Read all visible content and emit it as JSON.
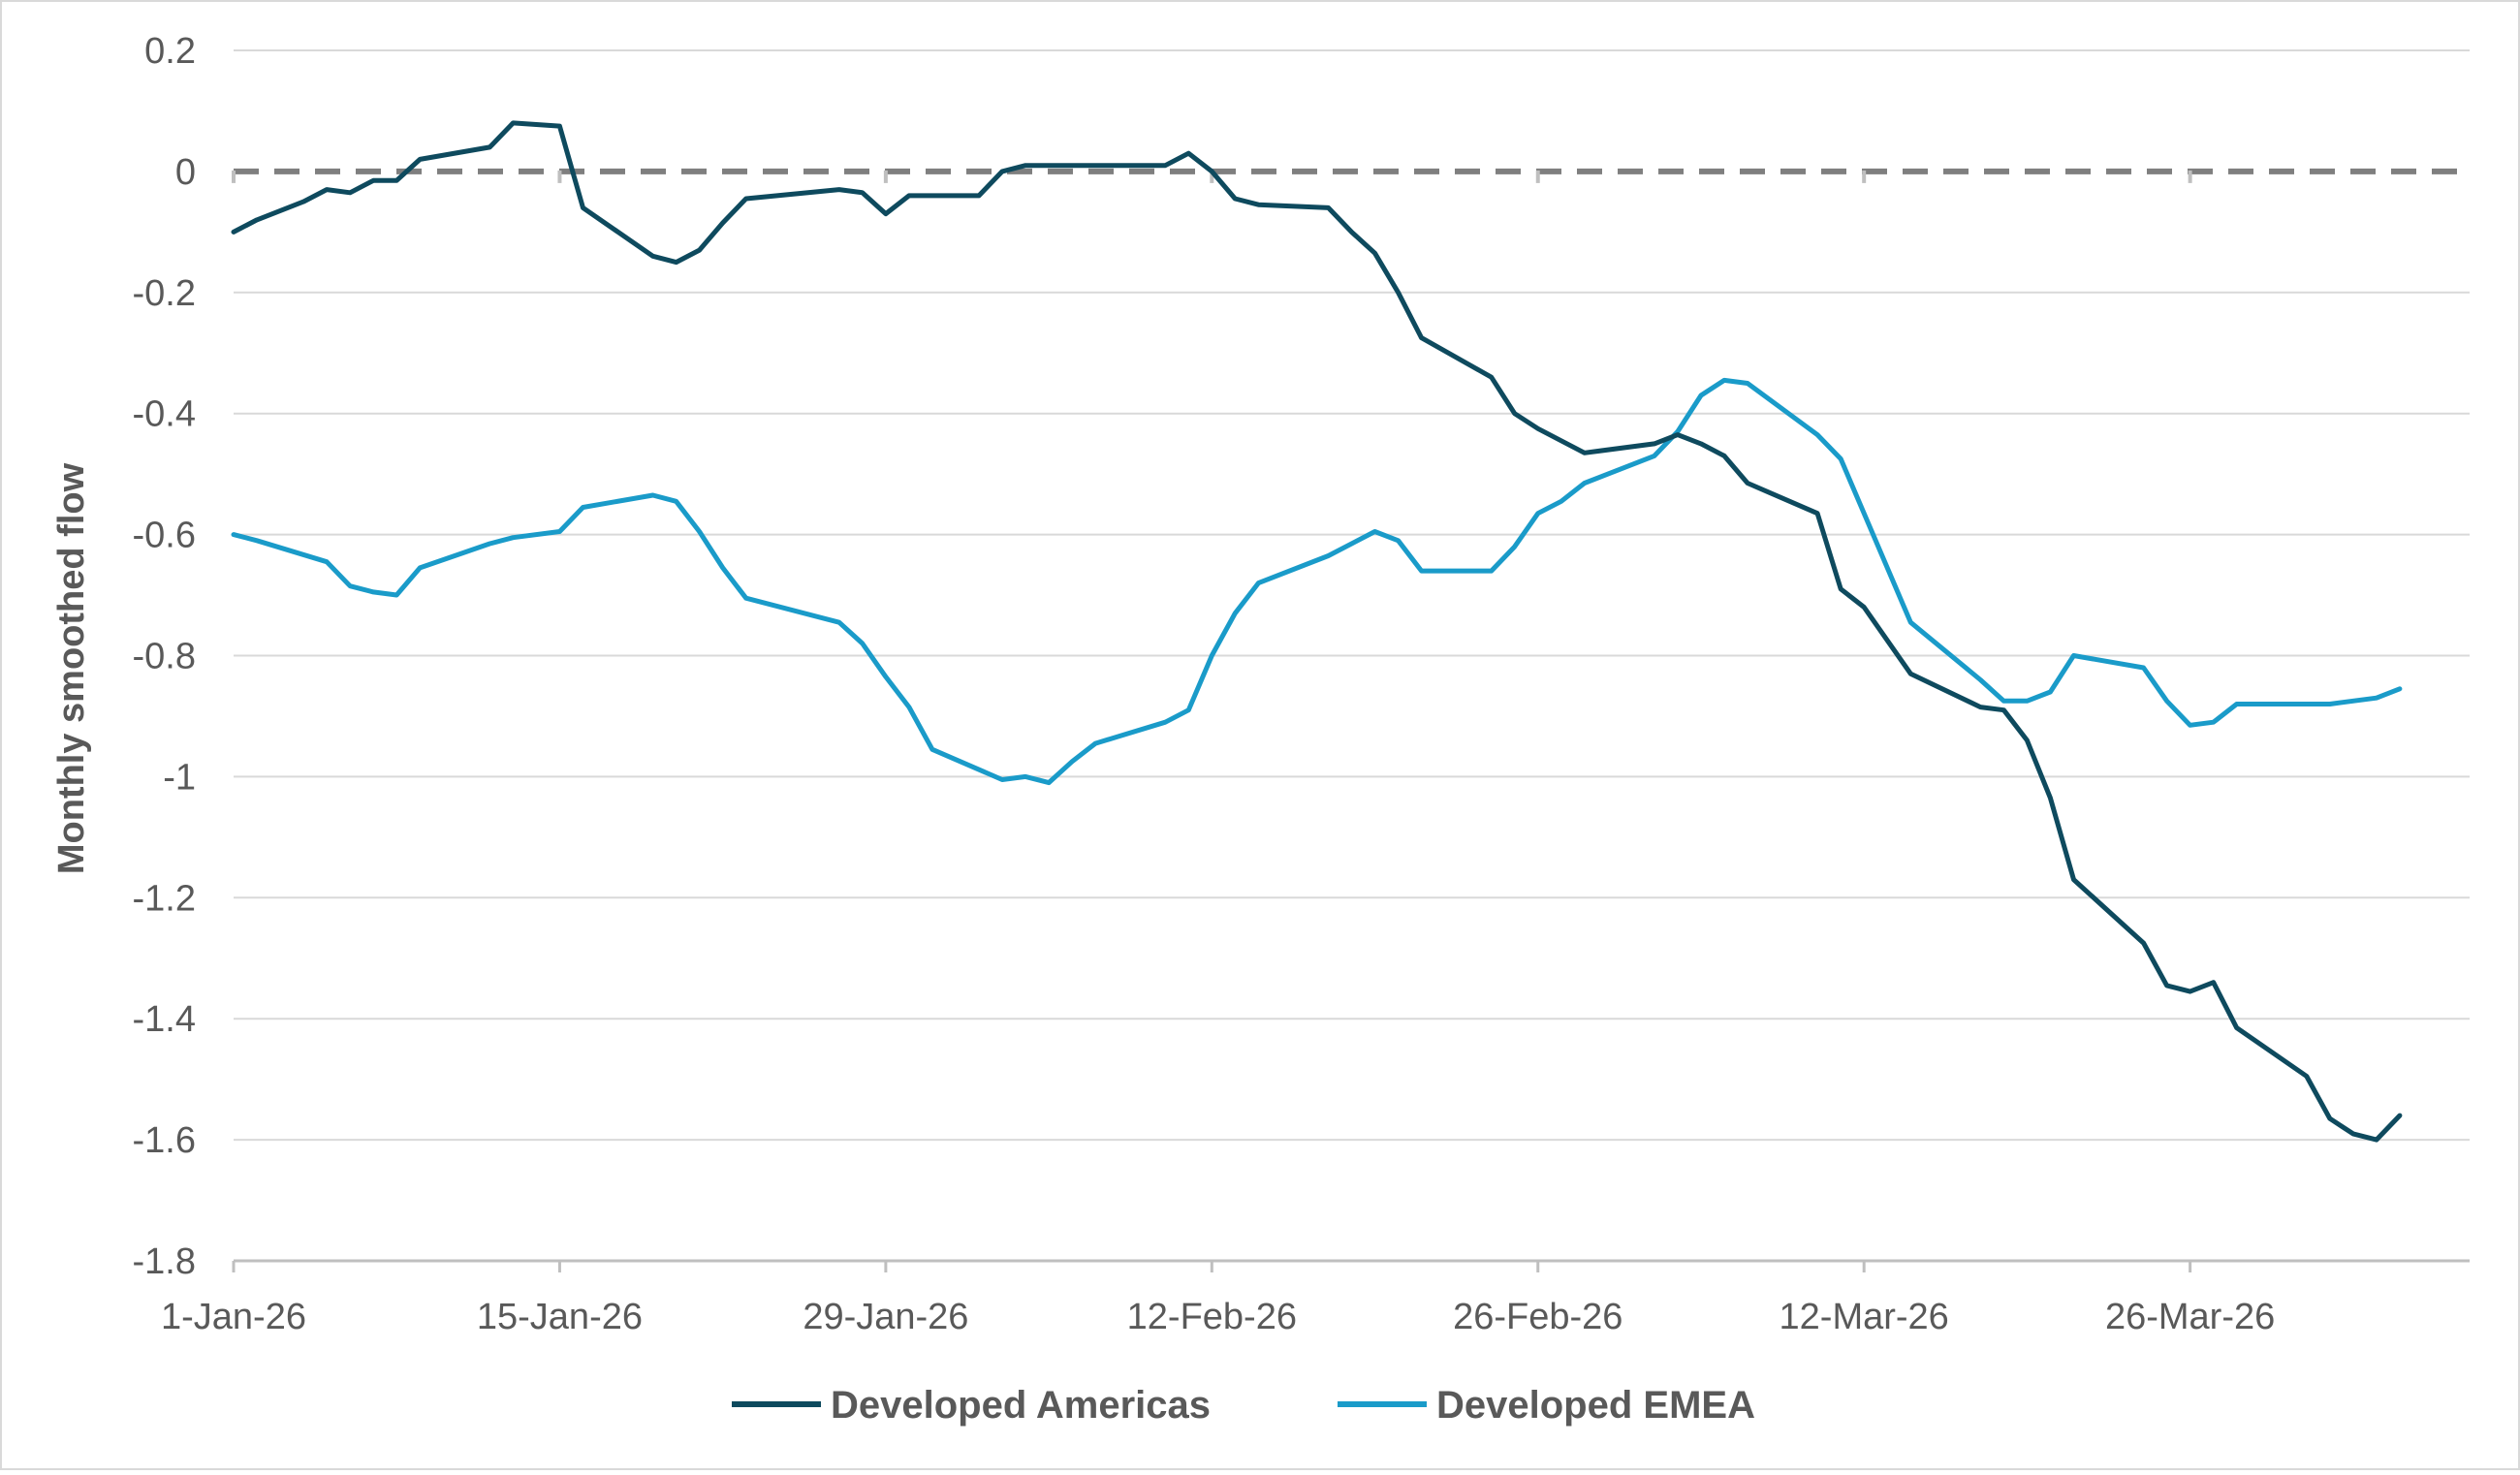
{
  "chart_data": {
    "type": "line",
    "title": "",
    "xlabel": "",
    "ylabel": "Monthly smoothed flow",
    "ylim": [
      -1.8,
      0.2
    ],
    "yticks": [
      0.2,
      0,
      -0.2,
      -0.4,
      -0.6,
      -0.8,
      -1,
      -1.2,
      -1.4,
      -1.6,
      -1.8
    ],
    "ytick_labels": [
      "0.2",
      "0",
      "-0.2",
      "-0.4",
      "-0.6",
      "-0.8",
      "-1",
      "-1.2",
      "-1.4",
      "-1.6",
      "-1.8"
    ],
    "xlim": [
      "2026-01-01",
      "2026-04-07"
    ],
    "xticks": [
      "2026-01-01",
      "2026-01-15",
      "2026-01-29",
      "2026-02-12",
      "2026-02-26",
      "2026-03-12",
      "2026-03-26"
    ],
    "xtick_labels": [
      "1-Jan-26",
      "15-Jan-26",
      "29-Jan-26",
      "12-Feb-26",
      "26-Feb-26",
      "12-Mar-26",
      "26-Mar-26"
    ],
    "grid": true,
    "reference_line": {
      "y": 0,
      "style": "dashed",
      "color": "#7f7f7f"
    },
    "legend_position": "bottom",
    "series": [
      {
        "name": "Developed Americas",
        "color": "#0e4a5e",
        "points": [
          [
            "2026-01-01",
            -0.1
          ],
          [
            "2026-01-02",
            -0.08
          ],
          [
            "2026-01-04",
            -0.05
          ],
          [
            "2026-01-05",
            -0.03
          ],
          [
            "2026-01-06",
            -0.035
          ],
          [
            "2026-01-07",
            -0.015
          ],
          [
            "2026-01-08",
            -0.015
          ],
          [
            "2026-01-09",
            0.02
          ],
          [
            "2026-01-12",
            0.04
          ],
          [
            "2026-01-13",
            0.08
          ],
          [
            "2026-01-15",
            0.075
          ],
          [
            "2026-01-16",
            -0.06
          ],
          [
            "2026-01-19",
            -0.14
          ],
          [
            "2026-01-20",
            -0.15
          ],
          [
            "2026-01-21",
            -0.13
          ],
          [
            "2026-01-22",
            -0.085
          ],
          [
            "2026-01-23",
            -0.045
          ],
          [
            "2026-01-27",
            -0.03
          ],
          [
            "2026-01-28",
            -0.035
          ],
          [
            "2026-01-29",
            -0.07
          ],
          [
            "2026-01-30",
            -0.04
          ],
          [
            "2026-02-02",
            -0.04
          ],
          [
            "2026-02-03",
            0.0
          ],
          [
            "2026-02-04",
            0.01
          ],
          [
            "2026-02-05",
            0.01
          ],
          [
            "2026-02-10",
            0.01
          ],
          [
            "2026-02-11",
            0.03
          ],
          [
            "2026-02-12",
            0.0
          ],
          [
            "2026-02-13",
            -0.045
          ],
          [
            "2026-02-14",
            -0.055
          ],
          [
            "2026-02-17",
            -0.06
          ],
          [
            "2026-02-18",
            -0.1
          ],
          [
            "2026-02-19",
            -0.135
          ],
          [
            "2026-02-20",
            -0.2
          ],
          [
            "2026-02-21",
            -0.275
          ],
          [
            "2026-02-24",
            -0.34
          ],
          [
            "2026-02-25",
            -0.4
          ],
          [
            "2026-02-26",
            -0.425
          ],
          [
            "2026-02-28",
            -0.465
          ],
          [
            "2026-03-03",
            -0.45
          ],
          [
            "2026-03-04",
            -0.435
          ],
          [
            "2026-03-05",
            -0.45
          ],
          [
            "2026-03-06",
            -0.47
          ],
          [
            "2026-03-07",
            -0.515
          ],
          [
            "2026-03-10",
            -0.565
          ],
          [
            "2026-03-11",
            -0.69
          ],
          [
            "2026-03-12",
            -0.72
          ],
          [
            "2026-03-14",
            -0.83
          ],
          [
            "2026-03-17",
            -0.885
          ],
          [
            "2026-03-18",
            -0.89
          ],
          [
            "2026-03-19",
            -0.94
          ],
          [
            "2026-03-20",
            -1.035
          ],
          [
            "2026-03-21",
            -1.17
          ],
          [
            "2026-03-24",
            -1.275
          ],
          [
            "2026-03-25",
            -1.345
          ],
          [
            "2026-03-26",
            -1.355
          ],
          [
            "2026-03-27",
            -1.34
          ],
          [
            "2026-03-28",
            -1.415
          ],
          [
            "2026-03-31",
            -1.495
          ],
          [
            "2026-04-01",
            -1.565
          ],
          [
            "2026-04-02",
            -1.59
          ],
          [
            "2026-04-03",
            -1.6
          ],
          [
            "2026-04-04",
            -1.56
          ]
        ]
      },
      {
        "name": "Developed EMEA",
        "color": "#1a9bc9",
        "points": [
          [
            "2026-01-01",
            -0.6
          ],
          [
            "2026-01-02",
            -0.61
          ],
          [
            "2026-01-05",
            -0.645
          ],
          [
            "2026-01-06",
            -0.685
          ],
          [
            "2026-01-07",
            -0.695
          ],
          [
            "2026-01-08",
            -0.7
          ],
          [
            "2026-01-09",
            -0.655
          ],
          [
            "2026-01-12",
            -0.615
          ],
          [
            "2026-01-13",
            -0.605
          ],
          [
            "2026-01-15",
            -0.595
          ],
          [
            "2026-01-16",
            -0.555
          ],
          [
            "2026-01-19",
            -0.535
          ],
          [
            "2026-01-20",
            -0.545
          ],
          [
            "2026-01-21",
            -0.595
          ],
          [
            "2026-01-22",
            -0.655
          ],
          [
            "2026-01-23",
            -0.705
          ],
          [
            "2026-01-27",
            -0.745
          ],
          [
            "2026-01-28",
            -0.78
          ],
          [
            "2026-01-29",
            -0.835
          ],
          [
            "2026-01-30",
            -0.885
          ],
          [
            "2026-01-31",
            -0.955
          ],
          [
            "2026-02-03",
            -1.005
          ],
          [
            "2026-02-04",
            -1.0
          ],
          [
            "2026-02-05",
            -1.01
          ],
          [
            "2026-02-06",
            -0.975
          ],
          [
            "2026-02-07",
            -0.945
          ],
          [
            "2026-02-10",
            -0.91
          ],
          [
            "2026-02-11",
            -0.89
          ],
          [
            "2026-02-12",
            -0.8
          ],
          [
            "2026-02-13",
            -0.73
          ],
          [
            "2026-02-14",
            -0.68
          ],
          [
            "2026-02-17",
            -0.635
          ],
          [
            "2026-02-19",
            -0.595
          ],
          [
            "2026-02-20",
            -0.61
          ],
          [
            "2026-02-21",
            -0.66
          ],
          [
            "2026-02-24",
            -0.66
          ],
          [
            "2026-02-25",
            -0.62
          ],
          [
            "2026-02-26",
            -0.565
          ],
          [
            "2026-02-27",
            -0.545
          ],
          [
            "2026-02-28",
            -0.515
          ],
          [
            "2026-03-03",
            -0.47
          ],
          [
            "2026-03-04",
            -0.43
          ],
          [
            "2026-03-05",
            -0.37
          ],
          [
            "2026-03-06",
            -0.345
          ],
          [
            "2026-03-07",
            -0.35
          ],
          [
            "2026-03-10",
            -0.435
          ],
          [
            "2026-03-11",
            -0.475
          ],
          [
            "2026-03-12",
            -0.565
          ],
          [
            "2026-03-14",
            -0.745
          ],
          [
            "2026-03-17",
            -0.84
          ],
          [
            "2026-03-18",
            -0.875
          ],
          [
            "2026-03-19",
            -0.875
          ],
          [
            "2026-03-20",
            -0.86
          ],
          [
            "2026-03-21",
            -0.8
          ],
          [
            "2026-03-24",
            -0.82
          ],
          [
            "2026-03-25",
            -0.875
          ],
          [
            "2026-03-26",
            -0.915
          ],
          [
            "2026-03-27",
            -0.91
          ],
          [
            "2026-03-28",
            -0.88
          ],
          [
            "2026-04-01",
            -0.88
          ],
          [
            "2026-04-02",
            -0.875
          ],
          [
            "2026-04-03",
            -0.87
          ],
          [
            "2026-04-04",
            -0.855
          ]
        ]
      }
    ]
  }
}
